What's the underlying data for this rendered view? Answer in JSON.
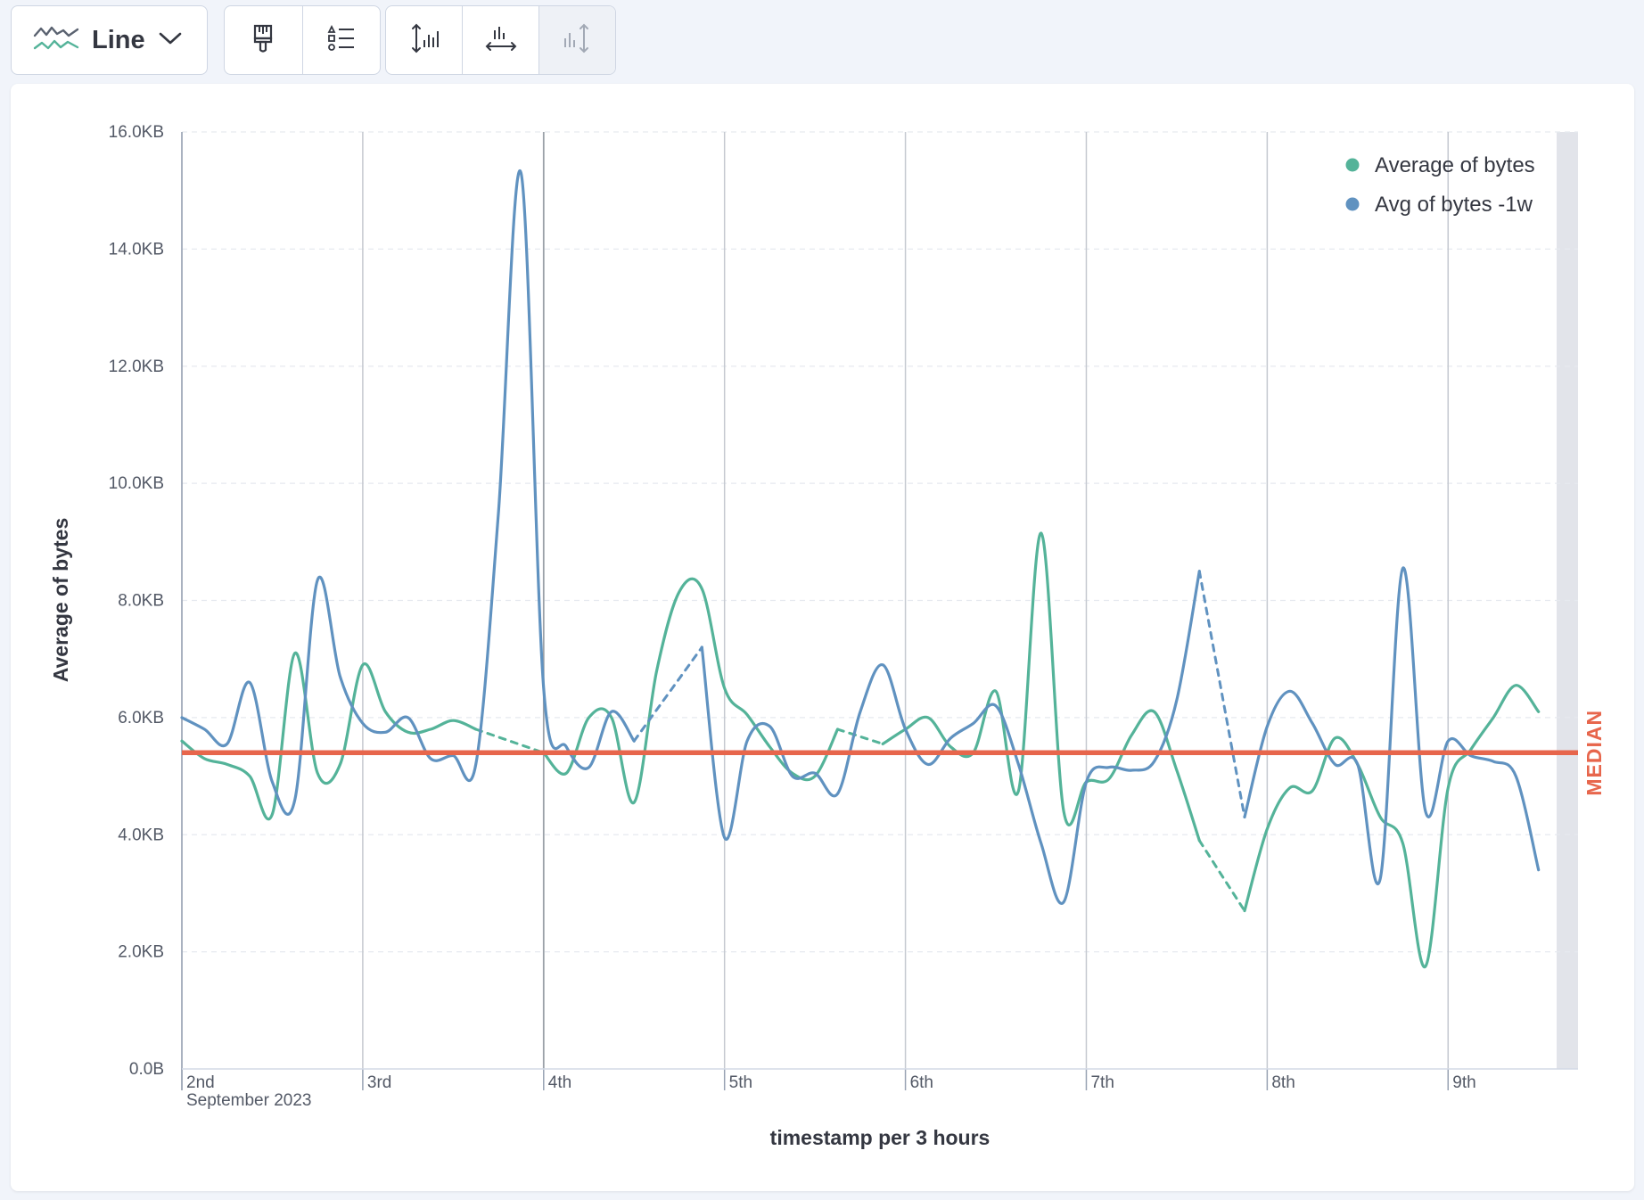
{
  "toolbar": {
    "chart_type_label": "Line",
    "chart_type_icon": "line-chart-icon",
    "chevron_icon": "chevron-down-icon",
    "group2": [
      {
        "icon": "paintbrush-icon"
      },
      {
        "icon": "legend-settings-icon"
      }
    ],
    "group3": [
      {
        "icon": "left-axis-settings-icon"
      },
      {
        "icon": "bottom-axis-settings-icon"
      },
      {
        "icon": "right-axis-settings-icon",
        "disabled": true
      }
    ]
  },
  "chart_data": {
    "type": "line",
    "ylabel": "Average of bytes",
    "xlabel": "timestamp per 3 hours",
    "y_ticks": [
      "0.0B",
      "2.0KB",
      "4.0KB",
      "6.0KB",
      "8.0KB",
      "10.0KB",
      "12.0KB",
      "14.0KB",
      "16.0KB"
    ],
    "ylim": [
      0,
      16
    ],
    "y_unit": "KB",
    "xlim": [
      0,
      7.6
    ],
    "x_unit": "days since 2nd September 2023",
    "x_ticks": [
      {
        "label": "2nd",
        "sub": "September 2023",
        "value": 0
      },
      {
        "label": "3rd",
        "value": 1
      },
      {
        "label": "4th",
        "value": 2
      },
      {
        "label": "5th",
        "value": 3
      },
      {
        "label": "6th",
        "value": 4
      },
      {
        "label": "7th",
        "value": 5
      },
      {
        "label": "8th",
        "value": 6
      },
      {
        "label": "9th",
        "value": 7
      }
    ],
    "legend_position": "top-right",
    "reference_line": {
      "label": "MEDIAN",
      "value": 5.4,
      "color": "#e7664c"
    },
    "series": [
      {
        "name": "Average of bytes",
        "color": "#54b399",
        "points": [
          [
            0,
            5.6
          ],
          [
            0.125,
            5.3
          ],
          [
            0.25,
            5.2
          ],
          [
            0.375,
            5.0
          ],
          [
            0.5,
            4.35
          ],
          [
            0.625,
            7.1
          ],
          [
            0.75,
            5.05
          ],
          [
            0.875,
            5.2
          ],
          [
            1.0,
            6.9
          ],
          [
            1.125,
            6.1
          ],
          [
            1.25,
            5.75
          ],
          [
            1.375,
            5.8
          ],
          [
            1.5,
            5.95
          ],
          [
            1.625,
            5.8
          ],
          [
            1.75,
            null
          ],
          [
            1.875,
            null
          ],
          [
            2.0,
            5.4
          ],
          [
            2.125,
            5.05
          ],
          [
            2.25,
            6.0
          ],
          [
            2.375,
            6.0
          ],
          [
            2.5,
            4.55
          ],
          [
            2.625,
            6.8
          ],
          [
            2.75,
            8.15
          ],
          [
            2.875,
            8.2
          ],
          [
            3.0,
            6.5
          ],
          [
            3.125,
            6.05
          ],
          [
            3.25,
            5.5
          ],
          [
            3.375,
            5.05
          ],
          [
            3.5,
            5.0
          ],
          [
            3.625,
            5.8
          ],
          [
            3.75,
            null
          ],
          [
            3.875,
            5.55
          ],
          [
            4.0,
            5.8
          ],
          [
            4.125,
            6.0
          ],
          [
            4.25,
            5.5
          ],
          [
            4.375,
            5.4
          ],
          [
            4.5,
            6.45
          ],
          [
            4.625,
            4.75
          ],
          [
            4.75,
            9.15
          ],
          [
            4.875,
            4.4
          ],
          [
            5.0,
            4.9
          ],
          [
            5.125,
            4.95
          ],
          [
            5.25,
            5.7
          ],
          [
            5.375,
            6.1
          ],
          [
            5.5,
            5.1
          ],
          [
            5.625,
            3.9
          ],
          [
            5.75,
            null
          ],
          [
            5.875,
            2.7
          ],
          [
            6.0,
            4.1
          ],
          [
            6.125,
            4.8
          ],
          [
            6.25,
            4.75
          ],
          [
            6.375,
            5.65
          ],
          [
            6.5,
            5.2
          ],
          [
            6.625,
            4.3
          ],
          [
            6.75,
            3.85
          ],
          [
            6.875,
            1.75
          ],
          [
            7.0,
            4.8
          ],
          [
            7.125,
            5.45
          ],
          [
            7.25,
            6.0
          ],
          [
            7.375,
            6.55
          ],
          [
            7.5,
            6.1
          ]
        ]
      },
      {
        "name": "Avg of bytes -1w",
        "color": "#6092c0",
        "points": [
          [
            0,
            6.0
          ],
          [
            0.125,
            5.8
          ],
          [
            0.25,
            5.55
          ],
          [
            0.375,
            6.6
          ],
          [
            0.5,
            4.9
          ],
          [
            0.625,
            4.6
          ],
          [
            0.75,
            8.35
          ],
          [
            0.875,
            6.7
          ],
          [
            1.0,
            5.9
          ],
          [
            1.125,
            5.75
          ],
          [
            1.25,
            6.0
          ],
          [
            1.375,
            5.3
          ],
          [
            1.5,
            5.35
          ],
          [
            1.625,
            5.2
          ],
          [
            1.75,
            9.5
          ],
          [
            1.875,
            15.3
          ],
          [
            2.0,
            6.5
          ],
          [
            2.125,
            5.5
          ],
          [
            2.25,
            5.15
          ],
          [
            2.375,
            6.1
          ],
          [
            2.5,
            5.6
          ],
          [
            2.625,
            null
          ],
          [
            2.75,
            null
          ],
          [
            2.875,
            7.2
          ],
          [
            3.0,
            3.95
          ],
          [
            3.125,
            5.6
          ],
          [
            3.25,
            5.85
          ],
          [
            3.375,
            5.0
          ],
          [
            3.5,
            5.05
          ],
          [
            3.625,
            4.7
          ],
          [
            3.75,
            6.1
          ],
          [
            3.875,
            6.9
          ],
          [
            4.0,
            5.8
          ],
          [
            4.125,
            5.2
          ],
          [
            4.25,
            5.65
          ],
          [
            4.375,
            5.9
          ],
          [
            4.5,
            6.2
          ],
          [
            4.625,
            5.2
          ],
          [
            4.75,
            3.85
          ],
          [
            4.875,
            2.85
          ],
          [
            5.0,
            4.9
          ],
          [
            5.125,
            5.15
          ],
          [
            5.25,
            5.1
          ],
          [
            5.375,
            5.25
          ],
          [
            5.5,
            6.3
          ],
          [
            5.625,
            8.5
          ],
          [
            5.75,
            null
          ],
          [
            5.875,
            4.3
          ],
          [
            6.0,
            5.85
          ],
          [
            6.125,
            6.45
          ],
          [
            6.25,
            5.9
          ],
          [
            6.375,
            5.2
          ],
          [
            6.5,
            5.2
          ],
          [
            6.625,
            3.25
          ],
          [
            6.75,
            8.55
          ],
          [
            6.875,
            4.4
          ],
          [
            7.0,
            5.6
          ],
          [
            7.125,
            5.35
          ],
          [
            7.25,
            5.25
          ],
          [
            7.375,
            5.0
          ],
          [
            7.5,
            3.4
          ]
        ]
      }
    ]
  }
}
